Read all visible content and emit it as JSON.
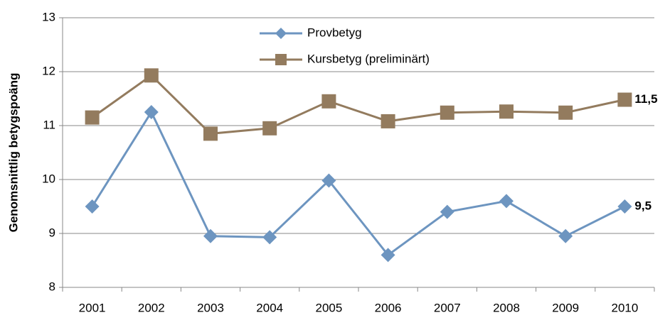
{
  "chart_data": {
    "type": "line",
    "y_label": "Genomsnittlig betygspoäng",
    "categories": [
      "2001",
      "2002",
      "2003",
      "2004",
      "2005",
      "2006",
      "2007",
      "2008",
      "2009",
      "2010"
    ],
    "series": [
      {
        "name": "Provbetyg",
        "color": "#6d95c0",
        "marker": "diamond",
        "values": [
          9.5,
          11.25,
          8.95,
          8.93,
          9.98,
          8.6,
          9.4,
          9.6,
          8.95,
          9.5
        ],
        "value_labels": [
          null,
          null,
          null,
          null,
          null,
          null,
          null,
          null,
          null,
          "9,5"
        ]
      },
      {
        "name": "Kursbetyg (preliminärt)",
        "color": "#937b5e",
        "marker": "square",
        "values": [
          11.15,
          11.93,
          10.85,
          10.95,
          11.45,
          11.08,
          11.24,
          11.26,
          11.24,
          11.48
        ],
        "value_labels": [
          null,
          null,
          null,
          null,
          null,
          null,
          null,
          null,
          null,
          "11,5"
        ]
      }
    ],
    "ylim": [
      8,
      13
    ],
    "yticks": [
      8,
      9,
      10,
      11,
      12,
      13
    ],
    "grid": true,
    "legend": "top"
  }
}
